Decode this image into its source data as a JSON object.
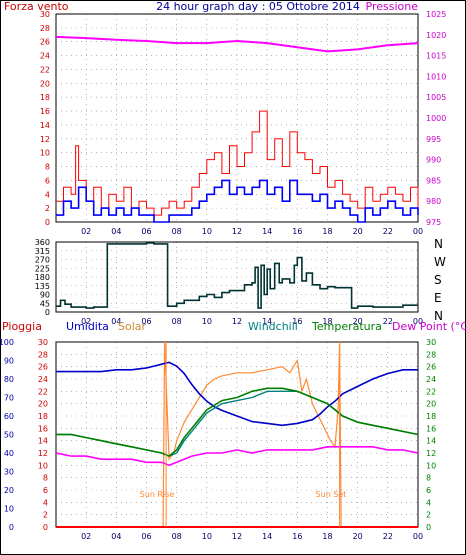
{
  "header": {
    "left_label": "Forza vento",
    "center_label": "24 hour graph day : 05 Ottobre 2014",
    "right_label": "Pressione"
  },
  "compass": [
    "N",
    "W",
    "S",
    "E",
    "N"
  ],
  "legend": {
    "rain": "Pioggia",
    "humidity": "Umidita",
    "solar": "Solar",
    "windchill": "Windchill",
    "temperature": "Temperatura",
    "dewpoint": "Dew Point (°C)"
  },
  "annotations": {
    "sunrise": "Sun Rise",
    "sunset": "Sun Set"
  },
  "colors": {
    "wind_gust": "#ff0000",
    "wind_avg": "#0000ff",
    "pressure": "#ff00ff",
    "direction": "#003333",
    "humidity": "#0000cc",
    "solar": "#ff8833",
    "windchill": "#008080",
    "temperature": "#008000",
    "dewpoint": "#ff00ff",
    "rain": "#ff0000",
    "axis_left": "#cc0000",
    "axis_left_blue": "#0000aa",
    "axis_right": "#cc00cc",
    "axis_right_green": "#008000"
  },
  "chart_data": [
    {
      "type": "line",
      "x_ticks": [
        "02",
        "04",
        "06",
        "08",
        "10",
        "12",
        "14",
        "16",
        "18",
        "20",
        "22",
        "00"
      ],
      "y_left_ticks": [
        0,
        2,
        4,
        6,
        8,
        10,
        12,
        14,
        16,
        18,
        20,
        22,
        24,
        26,
        28,
        30
      ],
      "y_right_ticks": [
        975,
        980,
        985,
        990,
        995,
        1000,
        1005,
        1010,
        1015,
        1020,
        1025
      ],
      "ylim_left": [
        0,
        30
      ],
      "ylim_right": [
        975,
        1025
      ],
      "xlim": [
        0,
        24
      ],
      "grid": true,
      "series": [
        {
          "name": "Forza vento",
          "key": "gust",
          "x": [
            0,
            0.5,
            1,
            1.3,
            1.5,
            2,
            2.5,
            3,
            3.5,
            4,
            4.5,
            5,
            5.5,
            6,
            6.5,
            7,
            7.5,
            8,
            8.5,
            9,
            9.5,
            10,
            10.5,
            11,
            11.5,
            12,
            12.5,
            13,
            13.5,
            14,
            14.5,
            15,
            15.5,
            16,
            16.5,
            17,
            17.5,
            18,
            18.5,
            19,
            19.5,
            20,
            20.5,
            21,
            21.5,
            22,
            22.5,
            23,
            23.5,
            24
          ],
          "values": [
            3,
            5,
            4,
            11,
            6,
            3,
            5,
            2,
            4,
            3,
            5,
            2,
            3,
            2,
            1,
            2,
            3,
            2,
            3,
            5,
            7,
            9,
            10,
            7,
            11,
            8,
            10,
            13,
            16,
            9,
            12,
            8,
            13,
            10,
            9,
            7,
            8,
            5,
            6,
            4,
            3,
            2,
            5,
            3,
            4,
            5,
            4,
            3,
            5,
            2
          ]
        },
        {
          "name": "",
          "key": "avg",
          "x": [
            0,
            0.5,
            1,
            1.5,
            2,
            2.5,
            3,
            3.5,
            4,
            4.5,
            5,
            5.5,
            6,
            6.5,
            7,
            7.5,
            8,
            8.5,
            9,
            9.5,
            10,
            10.5,
            11,
            11.5,
            12,
            12.5,
            13,
            13.5,
            14,
            14.5,
            15,
            15.5,
            16,
            16.5,
            17,
            17.5,
            18,
            18.5,
            19,
            19.5,
            20,
            20.5,
            21,
            21.5,
            22,
            22.5,
            23,
            23.5,
            24
          ],
          "values": [
            1,
            3,
            2,
            5,
            3,
            1,
            2,
            1,
            2,
            1,
            2,
            1,
            1,
            0,
            0,
            1,
            1,
            1,
            2,
            3,
            4,
            5,
            6,
            4,
            5,
            4,
            5,
            6,
            4,
            5,
            3,
            6,
            4,
            4,
            3,
            4,
            2,
            3,
            2,
            1,
            0,
            2,
            1,
            2,
            3,
            2,
            1,
            2,
            1
          ]
        },
        {
          "name": "Pressione",
          "key": "pressure",
          "axis": "right",
          "x": [
            0,
            2,
            4,
            6,
            8,
            10,
            12,
            14,
            16,
            18,
            20,
            22,
            24
          ],
          "values": [
            1019.5,
            1019.2,
            1018.8,
            1018.5,
            1018.0,
            1018.0,
            1018.5,
            1018.0,
            1017.0,
            1016.0,
            1016.5,
            1017.5,
            1018.0
          ]
        }
      ]
    },
    {
      "type": "line",
      "x_ticks": [
        "02",
        "04",
        "06",
        "08",
        "10",
        "12",
        "14",
        "16",
        "18",
        "20",
        "22",
        "00"
      ],
      "y_ticks": [
        0,
        45,
        90,
        135,
        180,
        225,
        270,
        315,
        360
      ],
      "ylim": [
        0,
        360
      ],
      "xlim": [
        0,
        24
      ],
      "grid": true,
      "series": [
        {
          "name": "",
          "key": "direction",
          "x": [
            0,
            0.3,
            0.6,
            1,
            1.5,
            2,
            2.5,
            3,
            3.3,
            3.4,
            5.5,
            6,
            6.5,
            7,
            7.3,
            7.4,
            8,
            8.5,
            9,
            9.5,
            10,
            10.5,
            11,
            11.5,
            12,
            12.5,
            13,
            13.2,
            13.4,
            13.6,
            13.8,
            14,
            14.2,
            14.5,
            14.8,
            15,
            15.5,
            15.8,
            16,
            16.3,
            16.6,
            17,
            17.5,
            18,
            18.5,
            19,
            19.5,
            19.6,
            20,
            21,
            22,
            23,
            24
          ],
          "values": [
            30,
            60,
            40,
            25,
            25,
            20,
            25,
            25,
            25,
            350,
            350,
            355,
            350,
            350,
            350,
            30,
            45,
            60,
            60,
            80,
            90,
            75,
            100,
            110,
            110,
            140,
            150,
            230,
            20,
            240,
            90,
            220,
            120,
            250,
            150,
            170,
            150,
            240,
            280,
            160,
            200,
            140,
            120,
            130,
            125,
            125,
            125,
            20,
            30,
            25,
            25,
            35,
            35
          ]
        }
      ]
    },
    {
      "type": "line",
      "x_ticks": [
        "02",
        "04",
        "06",
        "08",
        "10",
        "12",
        "14",
        "16",
        "18",
        "20",
        "22",
        "00"
      ],
      "y_left_ticks": [
        0,
        10,
        20,
        30,
        40,
        50,
        60,
        70,
        80,
        90,
        100
      ],
      "y_left2_ticks": [
        0,
        2,
        4,
        6,
        8,
        10,
        12,
        14,
        16,
        18,
        20,
        22,
        24,
        26,
        28,
        30
      ],
      "y_right_ticks": [
        0,
        2,
        4,
        6,
        8,
        10,
        12,
        14,
        16,
        18,
        20,
        22,
        24,
        26,
        28,
        30
      ],
      "ylim": [
        0,
        30
      ],
      "xlim": [
        0,
        24
      ],
      "grid": true,
      "sunrise_hour": 7.3,
      "sunset_hour": 18.8,
      "series": [
        {
          "name": "Umidita",
          "key": "humidity",
          "axis": "percent",
          "x": [
            0,
            1,
            2,
            3,
            4,
            5,
            6,
            6.5,
            7,
            7.5,
            8,
            8.5,
            9,
            9.5,
            10,
            10.5,
            11,
            12,
            13,
            14,
            15,
            16,
            17,
            17.5,
            18,
            18.5,
            19,
            20,
            21,
            22,
            23,
            23.5,
            24
          ],
          "values": [
            84,
            84,
            84,
            84,
            85,
            85,
            86,
            87,
            88,
            89,
            87,
            83,
            77,
            72,
            68,
            65,
            63,
            60,
            57,
            56,
            55,
            56,
            58,
            61,
            65,
            68,
            72,
            76,
            80,
            83,
            85,
            85,
            85
          ]
        },
        {
          "name": "Solar",
          "key": "solar",
          "x": [
            0,
            7.1,
            7.2,
            7.5,
            7.8,
            8,
            8.5,
            9,
            9.5,
            10,
            10.5,
            11,
            12,
            13,
            14,
            15,
            15.5,
            16,
            16.3,
            16.6,
            17,
            17.4,
            17.8,
            18.2,
            18.5,
            18.7,
            18.8,
            18.9,
            24
          ],
          "values": [
            0,
            0,
            30,
            11,
            12,
            14,
            17,
            19,
            21,
            23,
            24,
            24.5,
            25,
            25,
            25.5,
            26,
            25,
            27,
            22,
            24,
            20,
            18,
            16,
            14,
            13,
            19,
            30,
            0,
            0
          ]
        },
        {
          "name": "Windchill",
          "key": "windchill",
          "x": [
            0,
            1,
            2,
            3,
            4,
            5,
            6,
            7,
            7.5,
            8,
            8.5,
            9,
            9.5,
            10,
            11,
            12,
            13,
            14,
            15,
            16,
            17,
            17.5,
            18,
            18.5,
            19,
            20,
            21,
            22,
            23,
            24
          ],
          "values": [
            15,
            15,
            14.5,
            14,
            13.5,
            13,
            12.5,
            12,
            11.5,
            12,
            14,
            15.5,
            17,
            18.5,
            20,
            20.5,
            21,
            22,
            22,
            22,
            21,
            20.5,
            20,
            19,
            18,
            17,
            16.5,
            16,
            15.5,
            15
          ]
        },
        {
          "name": "Temperatura",
          "key": "temperature",
          "x": [
            0,
            1,
            2,
            3,
            4,
            5,
            6,
            7,
            7.5,
            8,
            8.5,
            9,
            9.5,
            10,
            11,
            12,
            13,
            14,
            15,
            16,
            17,
            17.5,
            18,
            18.5,
            19,
            20,
            21,
            22,
            23,
            24
          ],
          "values": [
            15,
            15,
            14.5,
            14,
            13.5,
            13,
            12.5,
            12,
            11.5,
            12.5,
            14.5,
            16,
            17.5,
            19,
            20.5,
            21,
            22,
            22.5,
            22.5,
            22,
            21,
            20.5,
            20,
            19,
            18,
            17,
            16.5,
            16,
            15.5,
            15
          ]
        },
        {
          "name": "Dew Point (°C)",
          "key": "dewpoint",
          "x": [
            0,
            1,
            2,
            3,
            4,
            5,
            6,
            7,
            7.5,
            8,
            9,
            10,
            11,
            12,
            13,
            14,
            15,
            16,
            17,
            18,
            19,
            20,
            21,
            22,
            23,
            24
          ],
          "values": [
            12,
            11.5,
            11.5,
            11,
            11,
            11,
            10.5,
            10.5,
            10,
            10.5,
            11.5,
            12,
            12,
            12.5,
            12,
            12.5,
            12.5,
            12.5,
            12.5,
            13,
            13,
            13,
            13,
            12.5,
            12.5,
            12
          ]
        },
        {
          "name": "Pioggia",
          "key": "rain",
          "x": [
            0,
            24
          ],
          "values": [
            0,
            0
          ]
        }
      ]
    }
  ]
}
